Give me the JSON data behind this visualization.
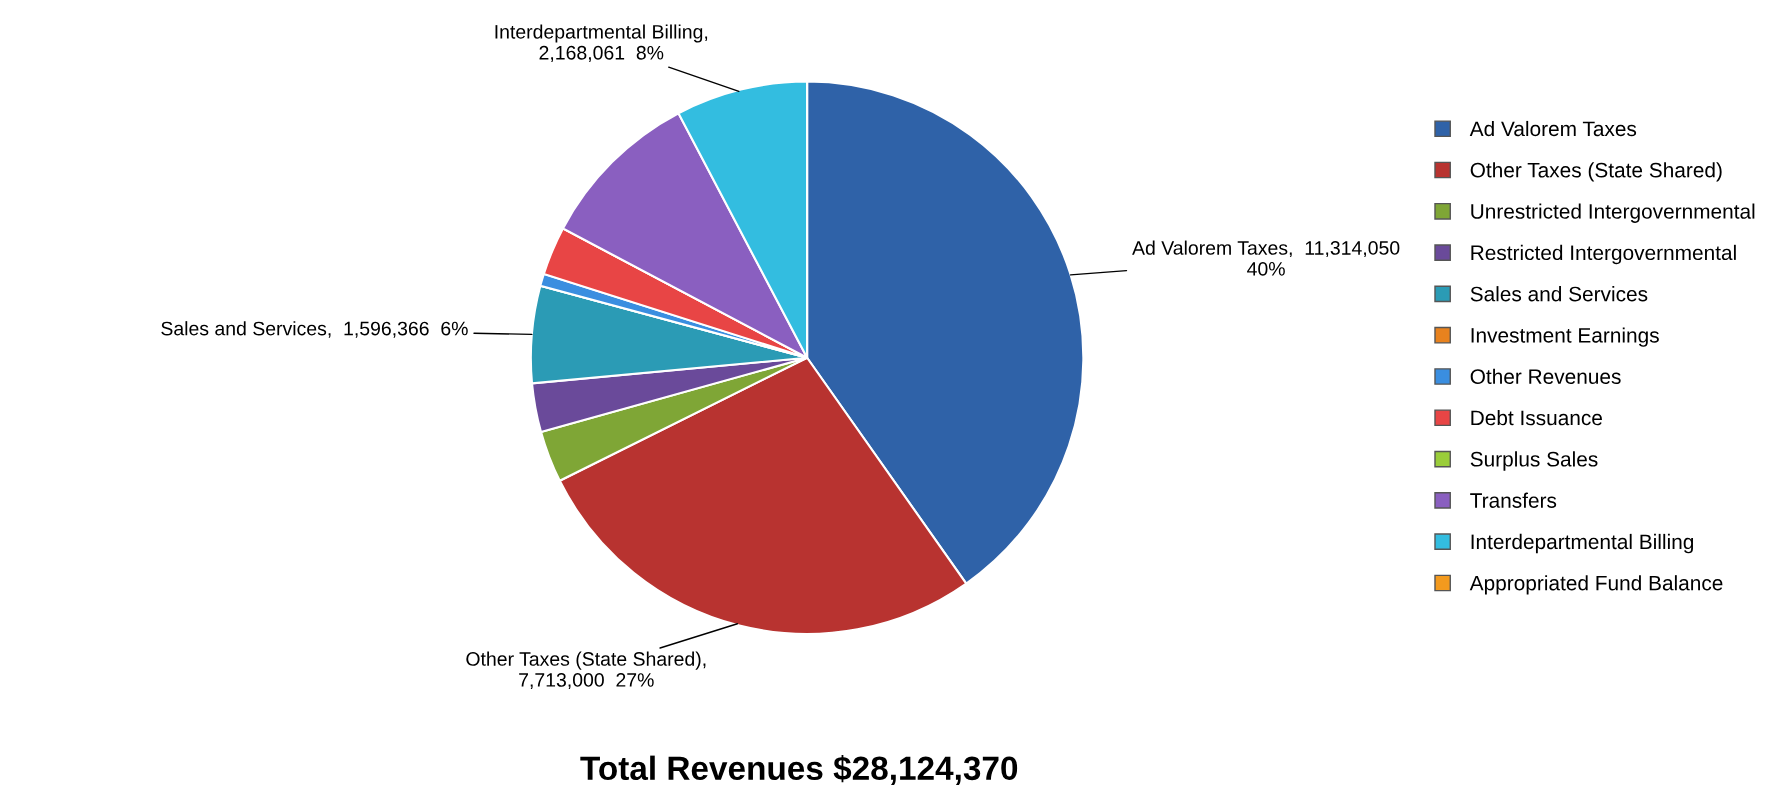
{
  "chart_data": {
    "type": "pie",
    "title": "Total Revenues $28,124,370",
    "categories": [
      "Ad Valorem Taxes",
      "Other Taxes (State Shared)",
      "Unrestricted Intergovernmental",
      "Restricted Intergovernmental",
      "Sales and Services",
      "Investment Earnings",
      "Other Revenues",
      "Debt Issuance",
      "Surplus Sales",
      "Transfers",
      "Interdepartmental Billing",
      "Appropriated Fund Balance"
    ],
    "values": [
      11314050,
      7713000,
      850000,
      800000,
      1596366,
      0,
      200000,
      800000,
      0,
      2682893,
      2168061,
      0
    ],
    "colors": [
      "#2f62a8",
      "#b83330",
      "#7fa636",
      "#6a4a9a",
      "#2b9bb5",
      "#e8821e",
      "#3a8ee0",
      "#e84545",
      "#9acd3a",
      "#8a5fc0",
      "#33bde0",
      "#f39a1e"
    ],
    "value_labels": [
      "Ad Valorem Taxes,  11,314,050\n40%",
      "Other Taxes (State Shared),\n7,713,000  27%",
      null,
      null,
      "Sales and Services,  1,596,366  6%",
      null,
      null,
      null,
      null,
      null,
      "Interdepartmental Billing,\n2,168,061  8%",
      null
    ],
    "legend": "right"
  }
}
